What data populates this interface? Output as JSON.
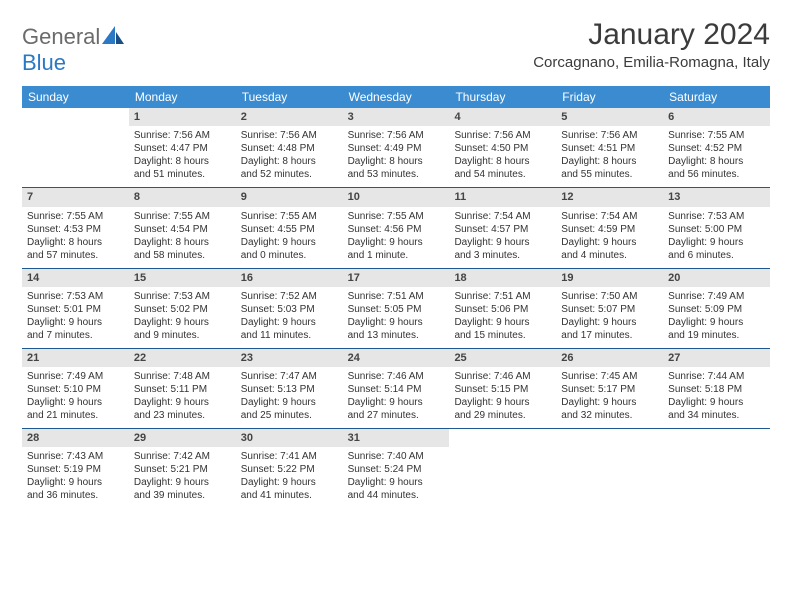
{
  "logo": {
    "general": "General",
    "blue": "Blue"
  },
  "title": "January 2024",
  "location": "Corcagnano, Emilia-Romagna, Italy",
  "dayNames": [
    "Sunday",
    "Monday",
    "Tuesday",
    "Wednesday",
    "Thursday",
    "Friday",
    "Saturday"
  ],
  "colors": {
    "headerBg": "#3b8bd0",
    "headerText": "#ffffff",
    "dayNumBg": "#e6e6e6",
    "weekBorder": "#1d5a94",
    "text": "#333333",
    "pageBg": "#ffffff"
  },
  "weeks": [
    [
      null,
      {
        "n": "1",
        "sr": "7:56 AM",
        "ss": "4:47 PM",
        "dl1": "Daylight: 8 hours",
        "dl2": "and 51 minutes."
      },
      {
        "n": "2",
        "sr": "7:56 AM",
        "ss": "4:48 PM",
        "dl1": "Daylight: 8 hours",
        "dl2": "and 52 minutes."
      },
      {
        "n": "3",
        "sr": "7:56 AM",
        "ss": "4:49 PM",
        "dl1": "Daylight: 8 hours",
        "dl2": "and 53 minutes."
      },
      {
        "n": "4",
        "sr": "7:56 AM",
        "ss": "4:50 PM",
        "dl1": "Daylight: 8 hours",
        "dl2": "and 54 minutes."
      },
      {
        "n": "5",
        "sr": "7:56 AM",
        "ss": "4:51 PM",
        "dl1": "Daylight: 8 hours",
        "dl2": "and 55 minutes."
      },
      {
        "n": "6",
        "sr": "7:55 AM",
        "ss": "4:52 PM",
        "dl1": "Daylight: 8 hours",
        "dl2": "and 56 minutes."
      }
    ],
    [
      {
        "n": "7",
        "sr": "7:55 AM",
        "ss": "4:53 PM",
        "dl1": "Daylight: 8 hours",
        "dl2": "and 57 minutes."
      },
      {
        "n": "8",
        "sr": "7:55 AM",
        "ss": "4:54 PM",
        "dl1": "Daylight: 8 hours",
        "dl2": "and 58 minutes."
      },
      {
        "n": "9",
        "sr": "7:55 AM",
        "ss": "4:55 PM",
        "dl1": "Daylight: 9 hours",
        "dl2": "and 0 minutes."
      },
      {
        "n": "10",
        "sr": "7:55 AM",
        "ss": "4:56 PM",
        "dl1": "Daylight: 9 hours",
        "dl2": "and 1 minute."
      },
      {
        "n": "11",
        "sr": "7:54 AM",
        "ss": "4:57 PM",
        "dl1": "Daylight: 9 hours",
        "dl2": "and 3 minutes."
      },
      {
        "n": "12",
        "sr": "7:54 AM",
        "ss": "4:59 PM",
        "dl1": "Daylight: 9 hours",
        "dl2": "and 4 minutes."
      },
      {
        "n": "13",
        "sr": "7:53 AM",
        "ss": "5:00 PM",
        "dl1": "Daylight: 9 hours",
        "dl2": "and 6 minutes."
      }
    ],
    [
      {
        "n": "14",
        "sr": "7:53 AM",
        "ss": "5:01 PM",
        "dl1": "Daylight: 9 hours",
        "dl2": "and 7 minutes."
      },
      {
        "n": "15",
        "sr": "7:53 AM",
        "ss": "5:02 PM",
        "dl1": "Daylight: 9 hours",
        "dl2": "and 9 minutes."
      },
      {
        "n": "16",
        "sr": "7:52 AM",
        "ss": "5:03 PM",
        "dl1": "Daylight: 9 hours",
        "dl2": "and 11 minutes."
      },
      {
        "n": "17",
        "sr": "7:51 AM",
        "ss": "5:05 PM",
        "dl1": "Daylight: 9 hours",
        "dl2": "and 13 minutes."
      },
      {
        "n": "18",
        "sr": "7:51 AM",
        "ss": "5:06 PM",
        "dl1": "Daylight: 9 hours",
        "dl2": "and 15 minutes."
      },
      {
        "n": "19",
        "sr": "7:50 AM",
        "ss": "5:07 PM",
        "dl1": "Daylight: 9 hours",
        "dl2": "and 17 minutes."
      },
      {
        "n": "20",
        "sr": "7:49 AM",
        "ss": "5:09 PM",
        "dl1": "Daylight: 9 hours",
        "dl2": "and 19 minutes."
      }
    ],
    [
      {
        "n": "21",
        "sr": "7:49 AM",
        "ss": "5:10 PM",
        "dl1": "Daylight: 9 hours",
        "dl2": "and 21 minutes."
      },
      {
        "n": "22",
        "sr": "7:48 AM",
        "ss": "5:11 PM",
        "dl1": "Daylight: 9 hours",
        "dl2": "and 23 minutes."
      },
      {
        "n": "23",
        "sr": "7:47 AM",
        "ss": "5:13 PM",
        "dl1": "Daylight: 9 hours",
        "dl2": "and 25 minutes."
      },
      {
        "n": "24",
        "sr": "7:46 AM",
        "ss": "5:14 PM",
        "dl1": "Daylight: 9 hours",
        "dl2": "and 27 minutes."
      },
      {
        "n": "25",
        "sr": "7:46 AM",
        "ss": "5:15 PM",
        "dl1": "Daylight: 9 hours",
        "dl2": "and 29 minutes."
      },
      {
        "n": "26",
        "sr": "7:45 AM",
        "ss": "5:17 PM",
        "dl1": "Daylight: 9 hours",
        "dl2": "and 32 minutes."
      },
      {
        "n": "27",
        "sr": "7:44 AM",
        "ss": "5:18 PM",
        "dl1": "Daylight: 9 hours",
        "dl2": "and 34 minutes."
      }
    ],
    [
      {
        "n": "28",
        "sr": "7:43 AM",
        "ss": "5:19 PM",
        "dl1": "Daylight: 9 hours",
        "dl2": "and 36 minutes."
      },
      {
        "n": "29",
        "sr": "7:42 AM",
        "ss": "5:21 PM",
        "dl1": "Daylight: 9 hours",
        "dl2": "and 39 minutes."
      },
      {
        "n": "30",
        "sr": "7:41 AM",
        "ss": "5:22 PM",
        "dl1": "Daylight: 9 hours",
        "dl2": "and 41 minutes."
      },
      {
        "n": "31",
        "sr": "7:40 AM",
        "ss": "5:24 PM",
        "dl1": "Daylight: 9 hours",
        "dl2": "and 44 minutes."
      },
      null,
      null,
      null
    ]
  ]
}
